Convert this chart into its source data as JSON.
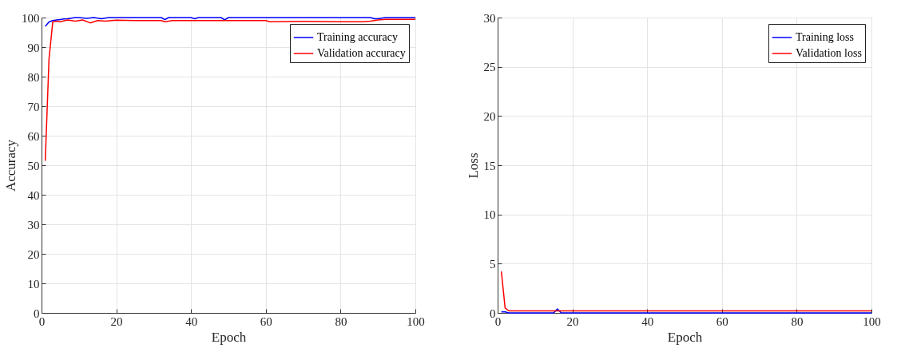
{
  "chart_data": [
    {
      "type": "line",
      "xlabel": "Epoch",
      "ylabel": "Accuracy",
      "xlim": [
        0,
        100
      ],
      "xticks": [
        0,
        20,
        40,
        60,
        80,
        100
      ],
      "ylim": [
        0,
        100
      ],
      "yticks": [
        0,
        10,
        20,
        30,
        40,
        50,
        60,
        70,
        80,
        90,
        100
      ],
      "grid": true,
      "legend": "top right",
      "series": [
        {
          "name": "Training accuracy",
          "color": "#0000ff",
          "x": [
            1,
            2,
            3,
            4,
            5,
            6,
            7,
            8,
            9,
            10,
            12,
            14,
            16,
            18,
            20,
            32,
            33,
            34,
            40,
            41,
            42,
            48,
            49,
            50,
            88,
            89,
            90,
            91,
            92,
            100
          ],
          "values": [
            97,
            98.5,
            99,
            99.2,
            99.3,
            99.5,
            99.6,
            99.8,
            100,
            100,
            99.7,
            100,
            99.6,
            100,
            100,
            100,
            99.3,
            100,
            100,
            99.6,
            100,
            100,
            99.2,
            100,
            100,
            99.6,
            99.6,
            99.8,
            100,
            100
          ]
        },
        {
          "name": "Validation accuracy",
          "color": "#ff0000",
          "x": [
            1,
            2,
            3,
            4,
            5,
            7,
            9,
            11,
            13,
            15,
            17,
            20,
            25,
            30,
            32,
            33,
            35,
            40,
            50,
            60,
            61,
            70,
            80,
            86,
            88,
            90,
            92,
            100
          ],
          "values": [
            51.5,
            86,
            98.5,
            98.8,
            98.6,
            99.2,
            98.8,
            99.2,
            98.2,
            99,
            98.8,
            99.1,
            99,
            99,
            99,
            98.6,
            99,
            99,
            99,
            99,
            98.6,
            98.7,
            98.6,
            98.6,
            98.8,
            99.2,
            99.4,
            99.4
          ]
        }
      ]
    },
    {
      "type": "line",
      "xlabel": "Epoch",
      "ylabel": "Loss",
      "xlim": [
        0,
        100
      ],
      "xticks": [
        0,
        20,
        40,
        60,
        80,
        100
      ],
      "ylim": [
        0,
        30
      ],
      "yticks": [
        0,
        5,
        10,
        15,
        20,
        25,
        30
      ],
      "grid": true,
      "legend": "top right",
      "series": [
        {
          "name": "Training loss",
          "color": "#0000ff",
          "x": [
            1,
            2,
            3,
            4,
            15,
            16,
            17,
            30,
            48,
            60,
            90,
            100
          ],
          "values": [
            0.1,
            0.1,
            0,
            0,
            0,
            0.4,
            0,
            0,
            0,
            0,
            0,
            0
          ]
        },
        {
          "name": "Validation loss",
          "color": "#ff0000",
          "x": [
            1,
            2,
            3,
            4,
            10,
            20,
            40,
            60,
            80,
            100
          ],
          "values": [
            4.2,
            0.5,
            0.2,
            0.2,
            0.2,
            0.2,
            0.2,
            0.2,
            0.2,
            0.2
          ]
        }
      ]
    }
  ]
}
